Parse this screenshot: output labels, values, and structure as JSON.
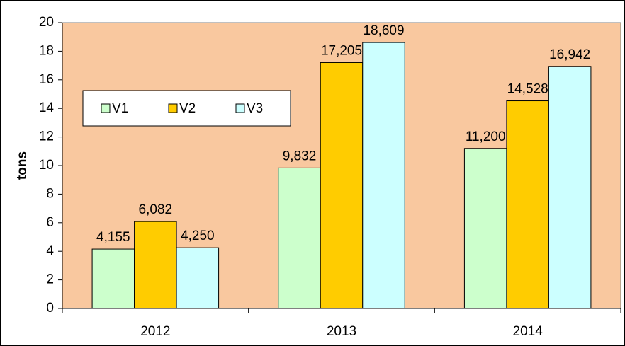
{
  "chart_data": {
    "type": "bar",
    "y_label": "tons",
    "categories": [
      "2012",
      "2013",
      "2014"
    ],
    "series": [
      {
        "name": "V1",
        "color": "#ccffcc",
        "values": [
          4.155,
          9.832,
          11.2
        ],
        "value_labels": [
          "4,155",
          "9,832",
          "11,200"
        ]
      },
      {
        "name": "V2",
        "color": "#ffcc00",
        "values": [
          6.082,
          17.205,
          14.528
        ],
        "value_labels": [
          "6,082",
          "17,205",
          "14,528"
        ]
      },
      {
        "name": "V3",
        "color": "#ccffff",
        "values": [
          4.25,
          18.609,
          16.942
        ],
        "value_labels": [
          "4,250",
          "18,609",
          "16,942"
        ]
      }
    ],
    "ylim": [
      0,
      20
    ],
    "yticks": [
      0,
      2,
      4,
      6,
      8,
      10,
      12,
      14,
      16,
      18,
      20
    ],
    "grid": false,
    "legend": "upper left",
    "plot_background": "#f9c89f"
  }
}
